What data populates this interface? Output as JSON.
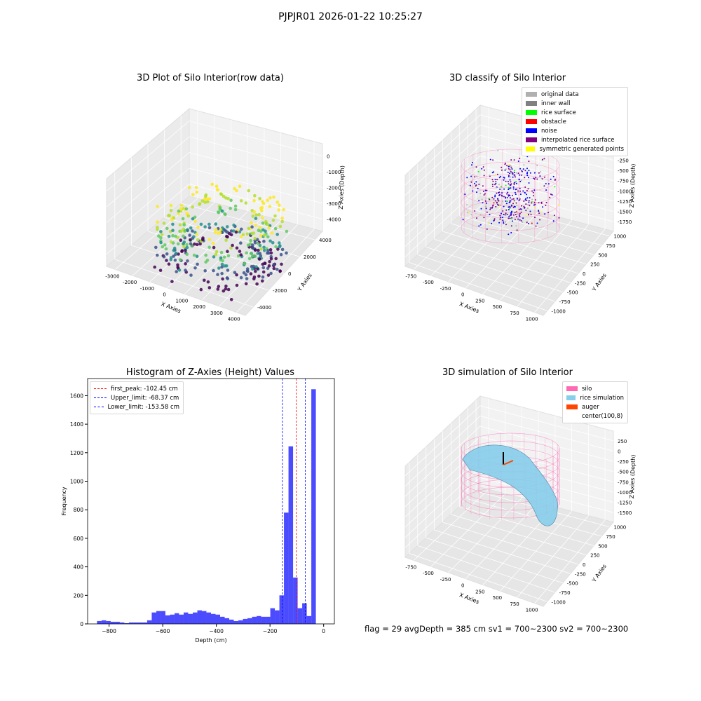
{
  "suptitle": "PJPJR01 2026-01-22 10:25:27",
  "footer": "flag = 29   avgDepth = 385 cm  sv1 = 700~2300  sv2 = 700~2300",
  "chart_data": [
    {
      "type": "scatter",
      "title": "3D Plot of Silo Interior(row data)",
      "xlabel": "X Axies",
      "ylabel": "Y Axies",
      "zlabel": "Z Axies (Depth)",
      "x_ticks": [
        "-3000",
        "-2000",
        "-1000",
        "0",
        "1000",
        "2000",
        "3000",
        "4000"
      ],
      "y_ticks": [
        "-4000",
        "-2000",
        "0",
        "2000",
        "4000"
      ],
      "z_ticks": [
        "0",
        "-1000",
        "-2000",
        "-3000",
        "-4000"
      ],
      "xlim": [
        -3300,
        4500
      ],
      "ylim": [
        -4500,
        4500
      ],
      "zlim": [
        -4500,
        200
      ],
      "colormap": "viridis"
    },
    {
      "type": "scatter",
      "title": "3D classify of Silo Interior",
      "xlabel": "X Axies",
      "ylabel": "Y Axies",
      "zlabel": "Z Axies (Depth)",
      "x_ticks": [
        "-750",
        "-500",
        "-250",
        "0",
        "250",
        "500",
        "750",
        "1000"
      ],
      "y_ticks": [
        "-1000",
        "-750",
        "-500",
        "-250",
        "0",
        "250",
        "500",
        "750",
        "1000"
      ],
      "z_ticks": [
        "0",
        "-250",
        "-500",
        "-750",
        "-1000",
        "-1250",
        "-1500",
        "-1750"
      ],
      "legend": [
        {
          "label": "original data",
          "color": "#b0b0b0"
        },
        {
          "label": "inner wall",
          "color": "#808080"
        },
        {
          "label": "rice surface",
          "color": "#00ff00"
        },
        {
          "label": "obstacle",
          "color": "#ff0000"
        },
        {
          "label": "noise",
          "color": "#0000ff"
        },
        {
          "label": "interpolated rice surface",
          "color": "#800080"
        },
        {
          "label": "symmetric generated points",
          "color": "#ffff00"
        }
      ]
    },
    {
      "type": "bar",
      "title": "Histogram of Z-Axies (Height) Values",
      "xlabel": "Depth (cm)",
      "ylabel": "Frequency",
      "xlim": [
        -880,
        40
      ],
      "ylim": [
        0,
        1720
      ],
      "x_ticks": [
        -800,
        -600,
        -400,
        -200,
        0
      ],
      "y_ticks": [
        0,
        200,
        400,
        600,
        800,
        1000,
        1200,
        1400,
        1600
      ],
      "bin_width": 17,
      "bin_start": -845,
      "values": [
        20,
        25,
        20,
        15,
        15,
        10,
        5,
        10,
        10,
        10,
        10,
        25,
        80,
        90,
        90,
        60,
        65,
        75,
        65,
        80,
        70,
        80,
        95,
        90,
        80,
        70,
        65,
        50,
        40,
        30,
        20,
        25,
        35,
        40,
        50,
        55,
        50,
        50,
        110,
        95,
        200,
        780,
        1245,
        325,
        110,
        145,
        55,
        1645
      ],
      "bar_color": "#0000ff",
      "vlines": [
        {
          "label": "first_peak: -102.45 cm",
          "x": -102.45,
          "color": "#ff0000"
        },
        {
          "label": "Upper_limit: -68.37 cm",
          "x": -68.37,
          "color": "#0000ff"
        },
        {
          "label": "Lower_limit: -153.58 cm",
          "x": -153.58,
          "color": "#0000ff"
        }
      ]
    },
    {
      "type": "surface",
      "title": "3D simulation of Silo Interior",
      "xlabel": "X Axies",
      "ylabel": "Y Axies",
      "zlabel": "Z Axies (Depth)",
      "x_ticks": [
        "-750",
        "-500",
        "-250",
        "0",
        "250",
        "500",
        "750",
        "1000"
      ],
      "y_ticks": [
        "-1000",
        "-750",
        "-500",
        "-250",
        "0",
        "250",
        "500",
        "750",
        "1000"
      ],
      "z_ticks": [
        "250",
        "0",
        "-250",
        "-500",
        "-750",
        "-1000",
        "-1250",
        "-1500"
      ],
      "legend": [
        {
          "label": "silo",
          "color": "#ff69b4"
        },
        {
          "label": "rice simulation",
          "color": "#87ceeb"
        },
        {
          "label": "auger",
          "color": "#ff4500"
        },
        {
          "label": "center(100,8)",
          "color": "#ffffff"
        }
      ]
    }
  ]
}
